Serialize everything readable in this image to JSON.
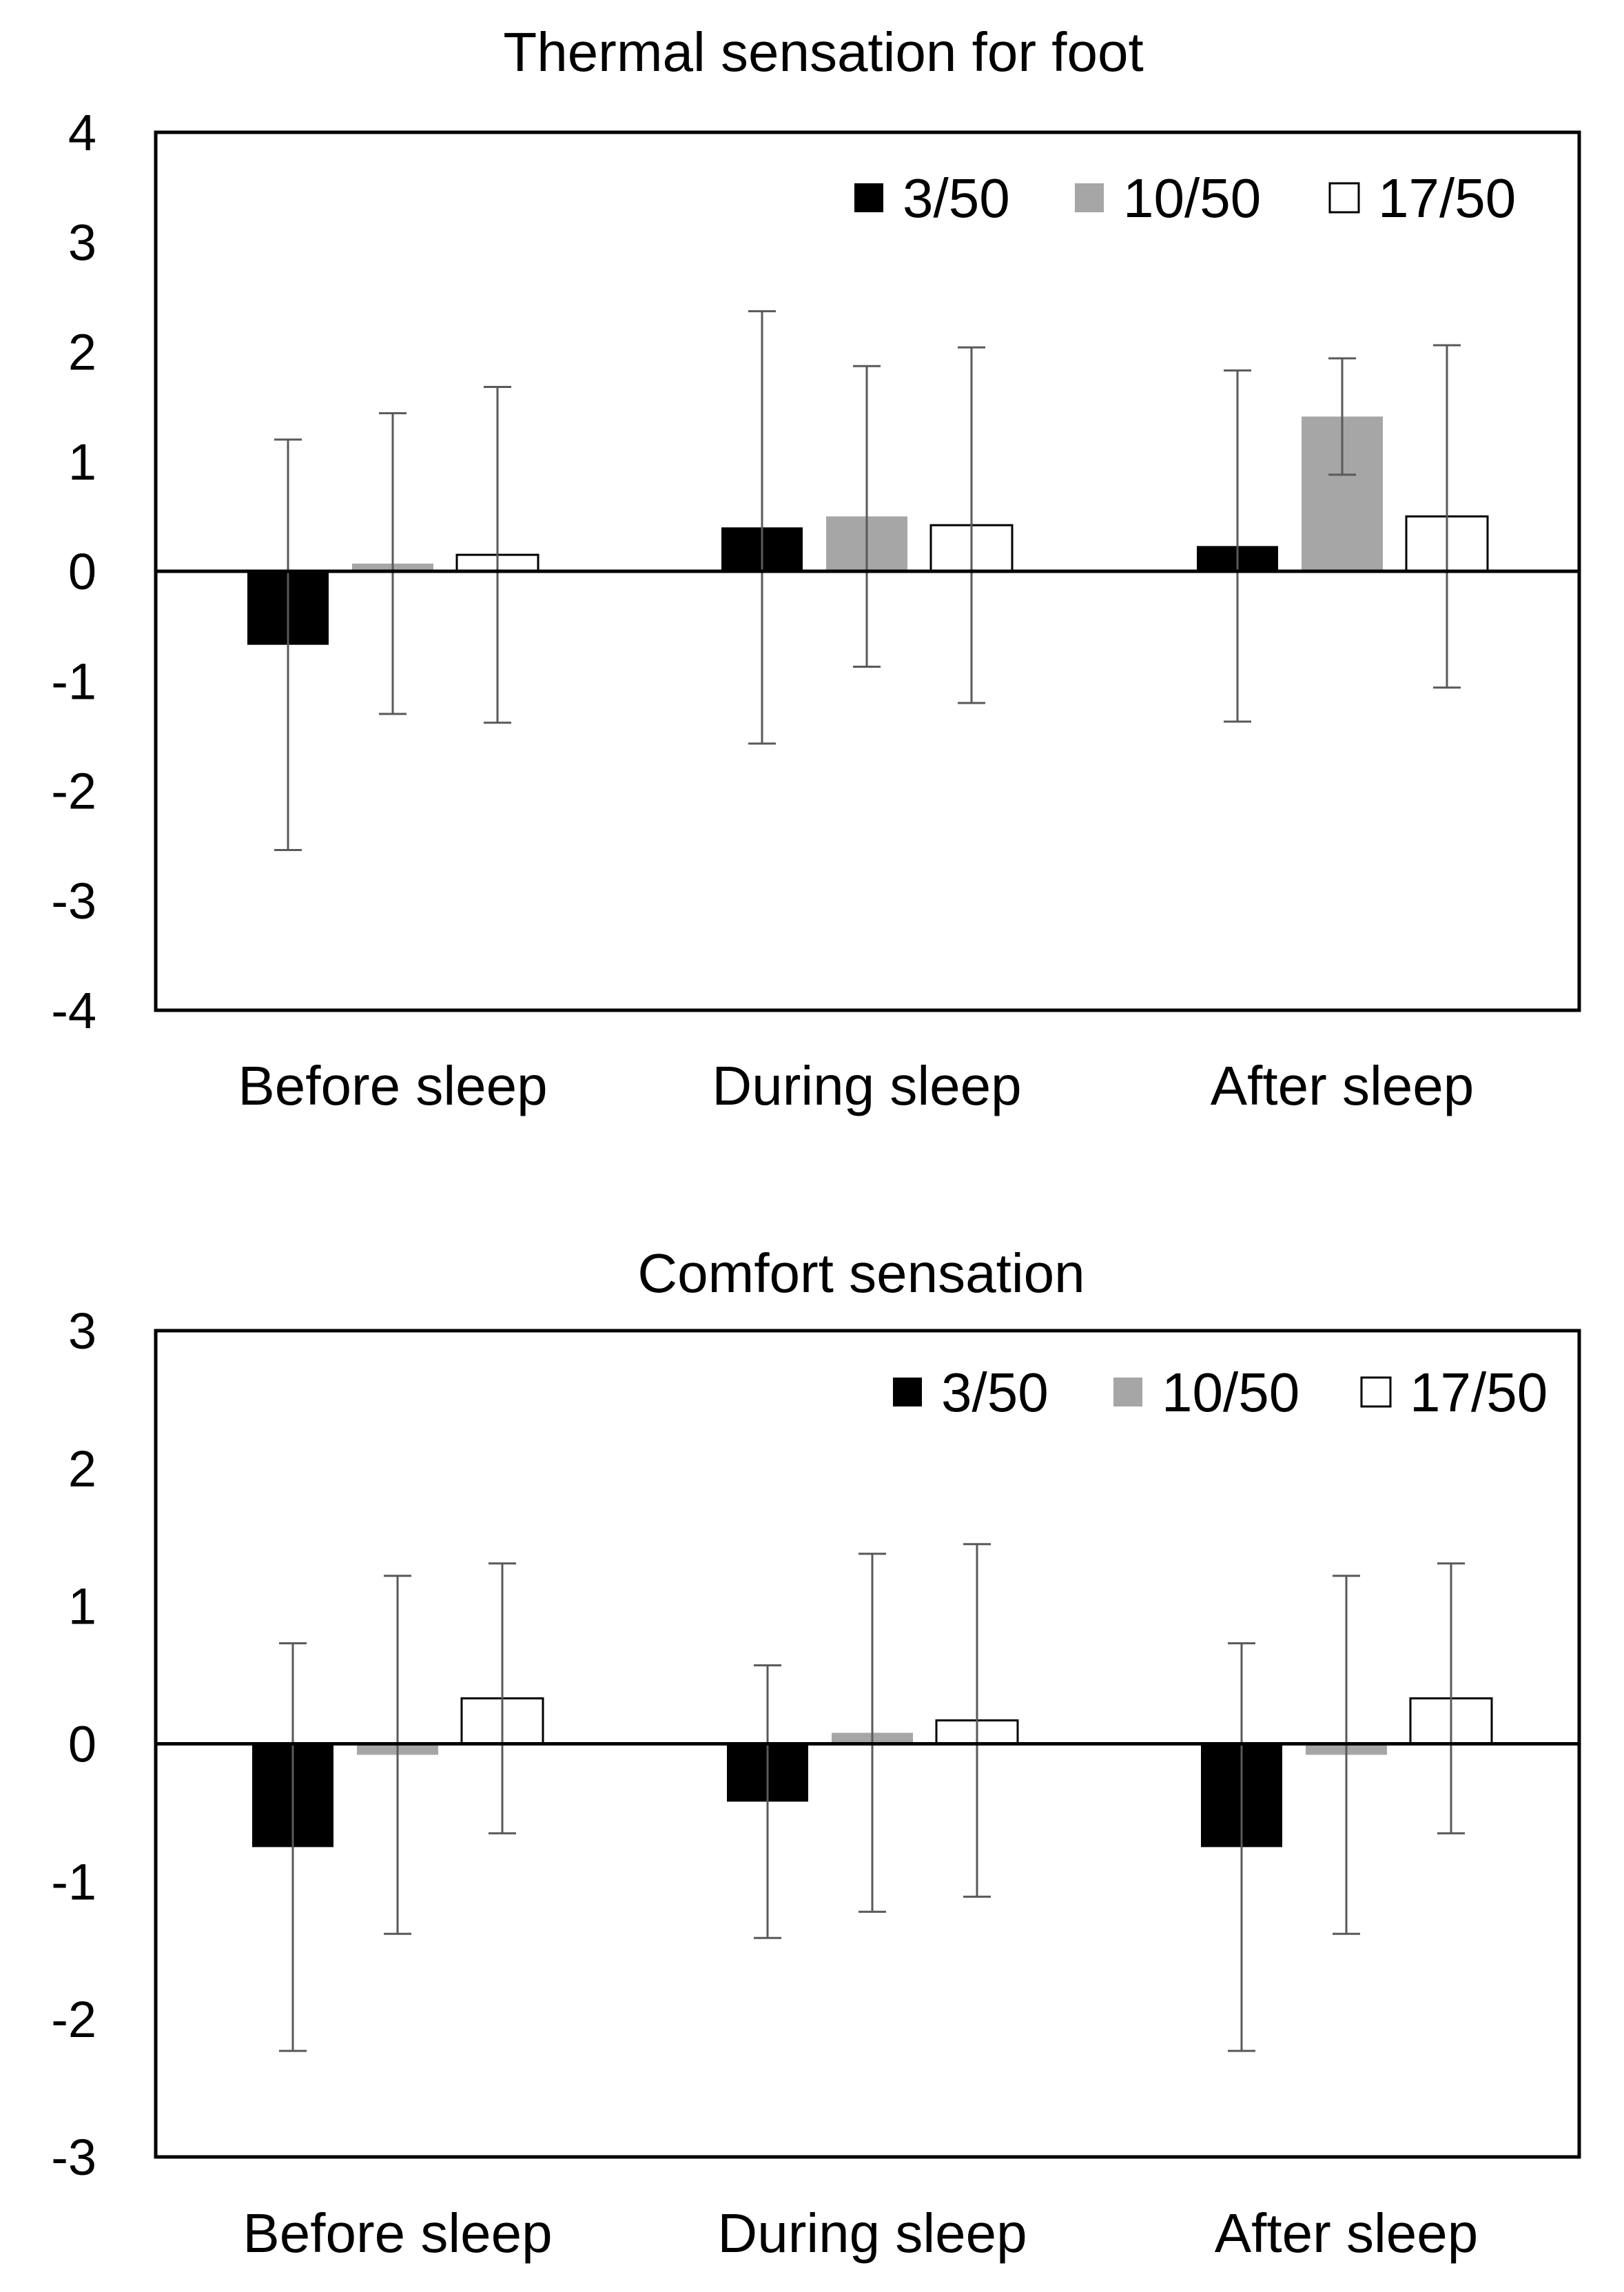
{
  "colors": {
    "series_3_50": "#000000",
    "series_10_50": "#a6a6a6",
    "series_17_50": "#ffffff",
    "axis": "#000000",
    "error_bar": "#595959"
  },
  "chart_data": [
    {
      "type": "bar",
      "title": "Thermal sensation for foot",
      "xlabel": "",
      "ylabel": "",
      "categories": [
        "Before sleep",
        "During sleep",
        "After sleep"
      ],
      "ylim": [
        -4,
        4
      ],
      "yticks": [
        "4",
        "3",
        "2",
        "1",
        "0",
        "-1",
        "-2",
        "-3",
        "-4"
      ],
      "legend_position": "top-right",
      "grid": false,
      "series": [
        {
          "name": "3/50",
          "values": [
            -0.67,
            0.4,
            0.23
          ],
          "error": [
            1.87,
            1.97,
            1.6
          ]
        },
        {
          "name": "10/50",
          "values": [
            0.07,
            0.5,
            1.41
          ],
          "error": [
            1.37,
            1.37,
            0.53
          ]
        },
        {
          "name": "17/50",
          "values": [
            0.15,
            0.42,
            0.5
          ],
          "error": [
            1.53,
            1.62,
            1.56
          ]
        }
      ]
    },
    {
      "type": "bar",
      "title": "Comfort sensation",
      "xlabel": "",
      "ylabel": "",
      "categories": [
        "Before sleep",
        "During sleep",
        "After sleep"
      ],
      "ylim": [
        -3,
        3
      ],
      "yticks": [
        "3",
        "2",
        "1",
        "0",
        "-1",
        "-2",
        "-3"
      ],
      "legend_position": "top-right",
      "grid": false,
      "series": [
        {
          "name": "3/50",
          "values": [
            -0.75,
            -0.42,
            -0.75
          ],
          "error": [
            1.48,
            0.99,
            1.48
          ]
        },
        {
          "name": "10/50",
          "values": [
            -0.08,
            0.08,
            -0.08
          ],
          "error": [
            1.3,
            1.3,
            1.3
          ]
        },
        {
          "name": "17/50",
          "values": [
            0.33,
            0.17,
            0.33
          ],
          "error": [
            0.98,
            1.28,
            0.98
          ]
        }
      ]
    }
  ]
}
